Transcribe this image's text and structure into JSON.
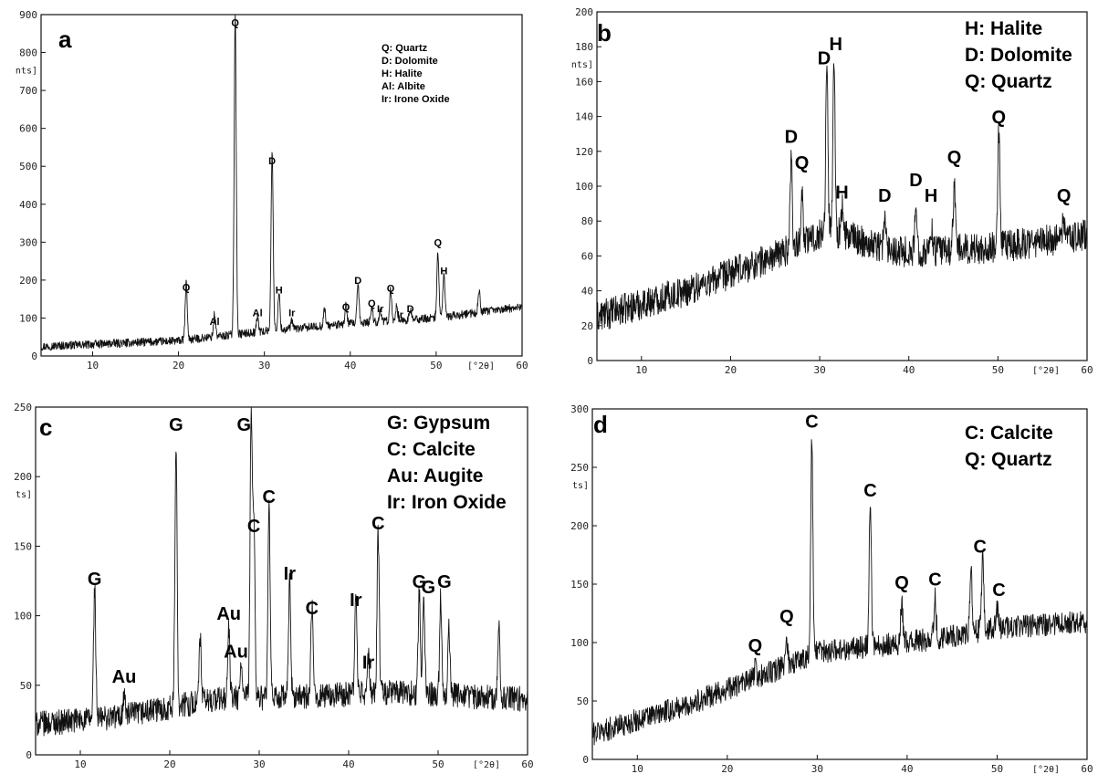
{
  "figure": {
    "title": ""
  },
  "chart_data": [
    {
      "panel": "a",
      "type": "line",
      "xlim": [
        4,
        60
      ],
      "ylim": [
        0,
        900
      ],
      "x_ticks": [
        10,
        20,
        30,
        40,
        50,
        60
      ],
      "x_tick_labels": [
        "10",
        "20",
        "30",
        "40",
        "50",
        "60"
      ],
      "y_ticks": [
        0,
        100,
        200,
        300,
        400,
        500,
        600,
        700,
        800,
        900
      ],
      "y_tick_labels": [
        "0",
        "100",
        "200",
        "300",
        "400",
        "500",
        "600",
        "700",
        "800",
        "900"
      ],
      "xlabel": "[°2θ]",
      "ylabel": "nts]",
      "baseline": [
        [
          4,
          25
        ],
        [
          20,
          40
        ],
        [
          30,
          65
        ],
        [
          40,
          85
        ],
        [
          50,
          100
        ],
        [
          60,
          130
        ]
      ],
      "peaks": [
        [
          20.9,
          150
        ],
        [
          24.2,
          60
        ],
        [
          26.6,
          850
        ],
        [
          29.2,
          40
        ],
        [
          30.9,
          480
        ],
        [
          31.7,
          95
        ],
        [
          33.2,
          20
        ],
        [
          37.0,
          45
        ],
        [
          39.5,
          50
        ],
        [
          40.9,
          100
        ],
        [
          42.5,
          40
        ],
        [
          43.5,
          30
        ],
        [
          44.7,
          80
        ],
        [
          45.4,
          40
        ],
        [
          47.0,
          25
        ],
        [
          50.2,
          170
        ],
        [
          50.9,
          115
        ],
        [
          55.0,
          55
        ]
      ],
      "noise": 11,
      "peak_labels": [
        {
          "x": 20.9,
          "y": 172,
          "text": "Q"
        },
        {
          "x": 24.2,
          "y": 82,
          "text": "Al"
        },
        {
          "x": 26.6,
          "y": 870,
          "text": "Q"
        },
        {
          "x": 29.2,
          "y": 105,
          "text": "Al"
        },
        {
          "x": 30.9,
          "y": 505,
          "text": "D"
        },
        {
          "x": 31.7,
          "y": 165,
          "text": "H"
        },
        {
          "x": 33.2,
          "y": 105,
          "text": "Ir"
        },
        {
          "x": 39.5,
          "y": 120,
          "text": "Q"
        },
        {
          "x": 40.9,
          "y": 190,
          "text": "D"
        },
        {
          "x": 42.5,
          "y": 130,
          "text": "Q"
        },
        {
          "x": 43.5,
          "y": 115,
          "text": "Ir"
        },
        {
          "x": 44.7,
          "y": 170,
          "text": "Q"
        },
        {
          "x": 45.8,
          "y": 100,
          "text": "Ir"
        },
        {
          "x": 47.0,
          "y": 115,
          "text": "D"
        },
        {
          "x": 50.2,
          "y": 290,
          "text": "Q"
        },
        {
          "x": 50.9,
          "y": 215,
          "text": "H"
        }
      ],
      "legend": [
        "Q: Quartz",
        "D: Dolomite",
        "H: Halite",
        "Al: Albite",
        "Ir: Irone Oxide"
      ]
    },
    {
      "panel": "b",
      "type": "line",
      "xlim": [
        5,
        60
      ],
      "ylim": [
        0,
        200
      ],
      "x_ticks": [
        10,
        20,
        30,
        40,
        50,
        60
      ],
      "x_tick_labels": [
        "10",
        "20",
        "30",
        "40",
        "50",
        "60"
      ],
      "y_ticks": [
        0,
        20,
        40,
        60,
        80,
        100,
        120,
        140,
        160,
        180,
        200
      ],
      "y_tick_labels": [
        "0",
        "20",
        "40",
        "60",
        "80",
        "100",
        "120",
        "140",
        "160",
        "180",
        "200"
      ],
      "xlabel": "[°2θ]",
      "ylabel": "nts]",
      "baseline": [
        [
          5,
          25
        ],
        [
          15,
          40
        ],
        [
          25,
          60
        ],
        [
          31,
          75
        ],
        [
          35,
          68
        ],
        [
          40,
          62
        ],
        [
          50,
          65
        ],
        [
          60,
          72
        ]
      ],
      "peaks": [
        [
          26.8,
          52
        ],
        [
          28.0,
          30
        ],
        [
          30.8,
          95
        ],
        [
          31.6,
          100
        ],
        [
          32.5,
          15
        ],
        [
          37.3,
          15
        ],
        [
          40.8,
          25
        ],
        [
          42.5,
          15
        ],
        [
          45.1,
          40
        ],
        [
          50.1,
          65
        ],
        [
          57.4,
          12
        ]
      ],
      "noise": 9,
      "peak_labels": [
        {
          "x": 26.8,
          "y": 125,
          "text": "D"
        },
        {
          "x": 28.0,
          "y": 110,
          "text": "Q"
        },
        {
          "x": 30.5,
          "y": 170,
          "text": "D"
        },
        {
          "x": 31.8,
          "y": 178,
          "text": "H"
        },
        {
          "x": 32.5,
          "y": 93,
          "text": "H"
        },
        {
          "x": 37.3,
          "y": 91,
          "text": "D"
        },
        {
          "x": 40.8,
          "y": 100,
          "text": "D"
        },
        {
          "x": 42.5,
          "y": 91,
          "text": "H"
        },
        {
          "x": 45.1,
          "y": 113,
          "text": "Q"
        },
        {
          "x": 50.1,
          "y": 136,
          "text": "Q"
        },
        {
          "x": 57.4,
          "y": 91,
          "text": "Q"
        }
      ],
      "legend": [
        "H: Halite",
        "D: Dolomite",
        "Q: Quartz"
      ]
    },
    {
      "panel": "c",
      "type": "line",
      "xlim": [
        5,
        60
      ],
      "ylim": [
        0,
        250
      ],
      "x_ticks": [
        10,
        20,
        30,
        40,
        50,
        60
      ],
      "x_tick_labels": [
        "10",
        "20",
        "30",
        "40",
        "50",
        "60"
      ],
      "y_ticks": [
        0,
        50,
        100,
        150,
        200,
        250
      ],
      "y_tick_labels": [
        "0",
        "50",
        "100",
        "150",
        "200",
        "250"
      ],
      "xlabel": "[°2θ]",
      "ylabel": "ts]",
      "baseline": [
        [
          5,
          22
        ],
        [
          15,
          28
        ],
        [
          25,
          40
        ],
        [
          35,
          42
        ],
        [
          45,
          45
        ],
        [
          60,
          40
        ]
      ],
      "peaks": [
        [
          11.6,
          95
        ],
        [
          14.9,
          15
        ],
        [
          20.7,
          190
        ],
        [
          23.4,
          45
        ],
        [
          26.6,
          50
        ],
        [
          28.0,
          25
        ],
        [
          29.1,
          205
        ],
        [
          29.4,
          130
        ],
        [
          31.1,
          135
        ],
        [
          33.4,
          82
        ],
        [
          35.9,
          62
        ],
        [
          40.8,
          75
        ],
        [
          42.2,
          25
        ],
        [
          43.3,
          115
        ],
        [
          47.9,
          75
        ],
        [
          48.4,
          70
        ],
        [
          50.3,
          70
        ],
        [
          51.2,
          50
        ],
        [
          56.8,
          50
        ]
      ],
      "noise": 9,
      "peak_labels": [
        {
          "x": 11.6,
          "y": 122,
          "text": "G"
        },
        {
          "x": 14.9,
          "y": 52,
          "text": "Au"
        },
        {
          "x": 20.7,
          "y": 233,
          "text": "G"
        },
        {
          "x": 26.6,
          "y": 97,
          "text": "Au"
        },
        {
          "x": 27.4,
          "y": 70,
          "text": "Au"
        },
        {
          "x": 28.3,
          "y": 233,
          "text": "G"
        },
        {
          "x": 29.4,
          "y": 160,
          "text": "C"
        },
        {
          "x": 31.1,
          "y": 181,
          "text": "C"
        },
        {
          "x": 33.4,
          "y": 126,
          "text": "Ir"
        },
        {
          "x": 35.9,
          "y": 101,
          "text": "C"
        },
        {
          "x": 40.8,
          "y": 107,
          "text": "Ir"
        },
        {
          "x": 42.2,
          "y": 62,
          "text": "Ir"
        },
        {
          "x": 43.3,
          "y": 162,
          "text": "C"
        },
        {
          "x": 47.9,
          "y": 120,
          "text": "G"
        },
        {
          "x": 48.9,
          "y": 116,
          "text": "G"
        },
        {
          "x": 50.7,
          "y": 120,
          "text": "G"
        }
      ],
      "legend": [
        "G: Gypsum",
        "C: Calcite",
        "Au: Augite",
        "Ir: Iron Oxide"
      ]
    },
    {
      "panel": "d",
      "type": "line",
      "xlim": [
        5,
        60
      ],
      "ylim": [
        0,
        300
      ],
      "x_ticks": [
        10,
        20,
        30,
        40,
        50,
        60
      ],
      "x_tick_labels": [
        "10",
        "20",
        "30",
        "40",
        "50",
        "60"
      ],
      "y_ticks": [
        0,
        50,
        100,
        150,
        200,
        250,
        300
      ],
      "y_tick_labels": [
        "0",
        "50",
        "100",
        "150",
        "200",
        "250",
        "300"
      ],
      "xlabel": "[°2θ]",
      "ylabel": "ts]",
      "baseline": [
        [
          5,
          22
        ],
        [
          15,
          45
        ],
        [
          25,
          75
        ],
        [
          30,
          92
        ],
        [
          40,
          100
        ],
        [
          50,
          112
        ],
        [
          60,
          118
        ]
      ],
      "peaks": [
        [
          23.1,
          10
        ],
        [
          26.6,
          25
        ],
        [
          29.4,
          180
        ],
        [
          35.9,
          125
        ],
        [
          39.4,
          35
        ],
        [
          43.1,
          35
        ],
        [
          47.1,
          50
        ],
        [
          48.4,
          60
        ],
        [
          50.0,
          18
        ]
      ],
      "noise": 10,
      "peak_labels": [
        {
          "x": 23.1,
          "y": 92,
          "text": "Q"
        },
        {
          "x": 26.6,
          "y": 117,
          "text": "Q"
        },
        {
          "x": 29.4,
          "y": 284,
          "text": "C"
        },
        {
          "x": 35.9,
          "y": 225,
          "text": "C"
        },
        {
          "x": 39.4,
          "y": 146,
          "text": "Q"
        },
        {
          "x": 43.1,
          "y": 149,
          "text": "C"
        },
        {
          "x": 48.1,
          "y": 177,
          "text": "C"
        },
        {
          "x": 50.2,
          "y": 140,
          "text": "C"
        }
      ],
      "legend": [
        "C: Calcite",
        "Q: Quartz"
      ]
    }
  ]
}
